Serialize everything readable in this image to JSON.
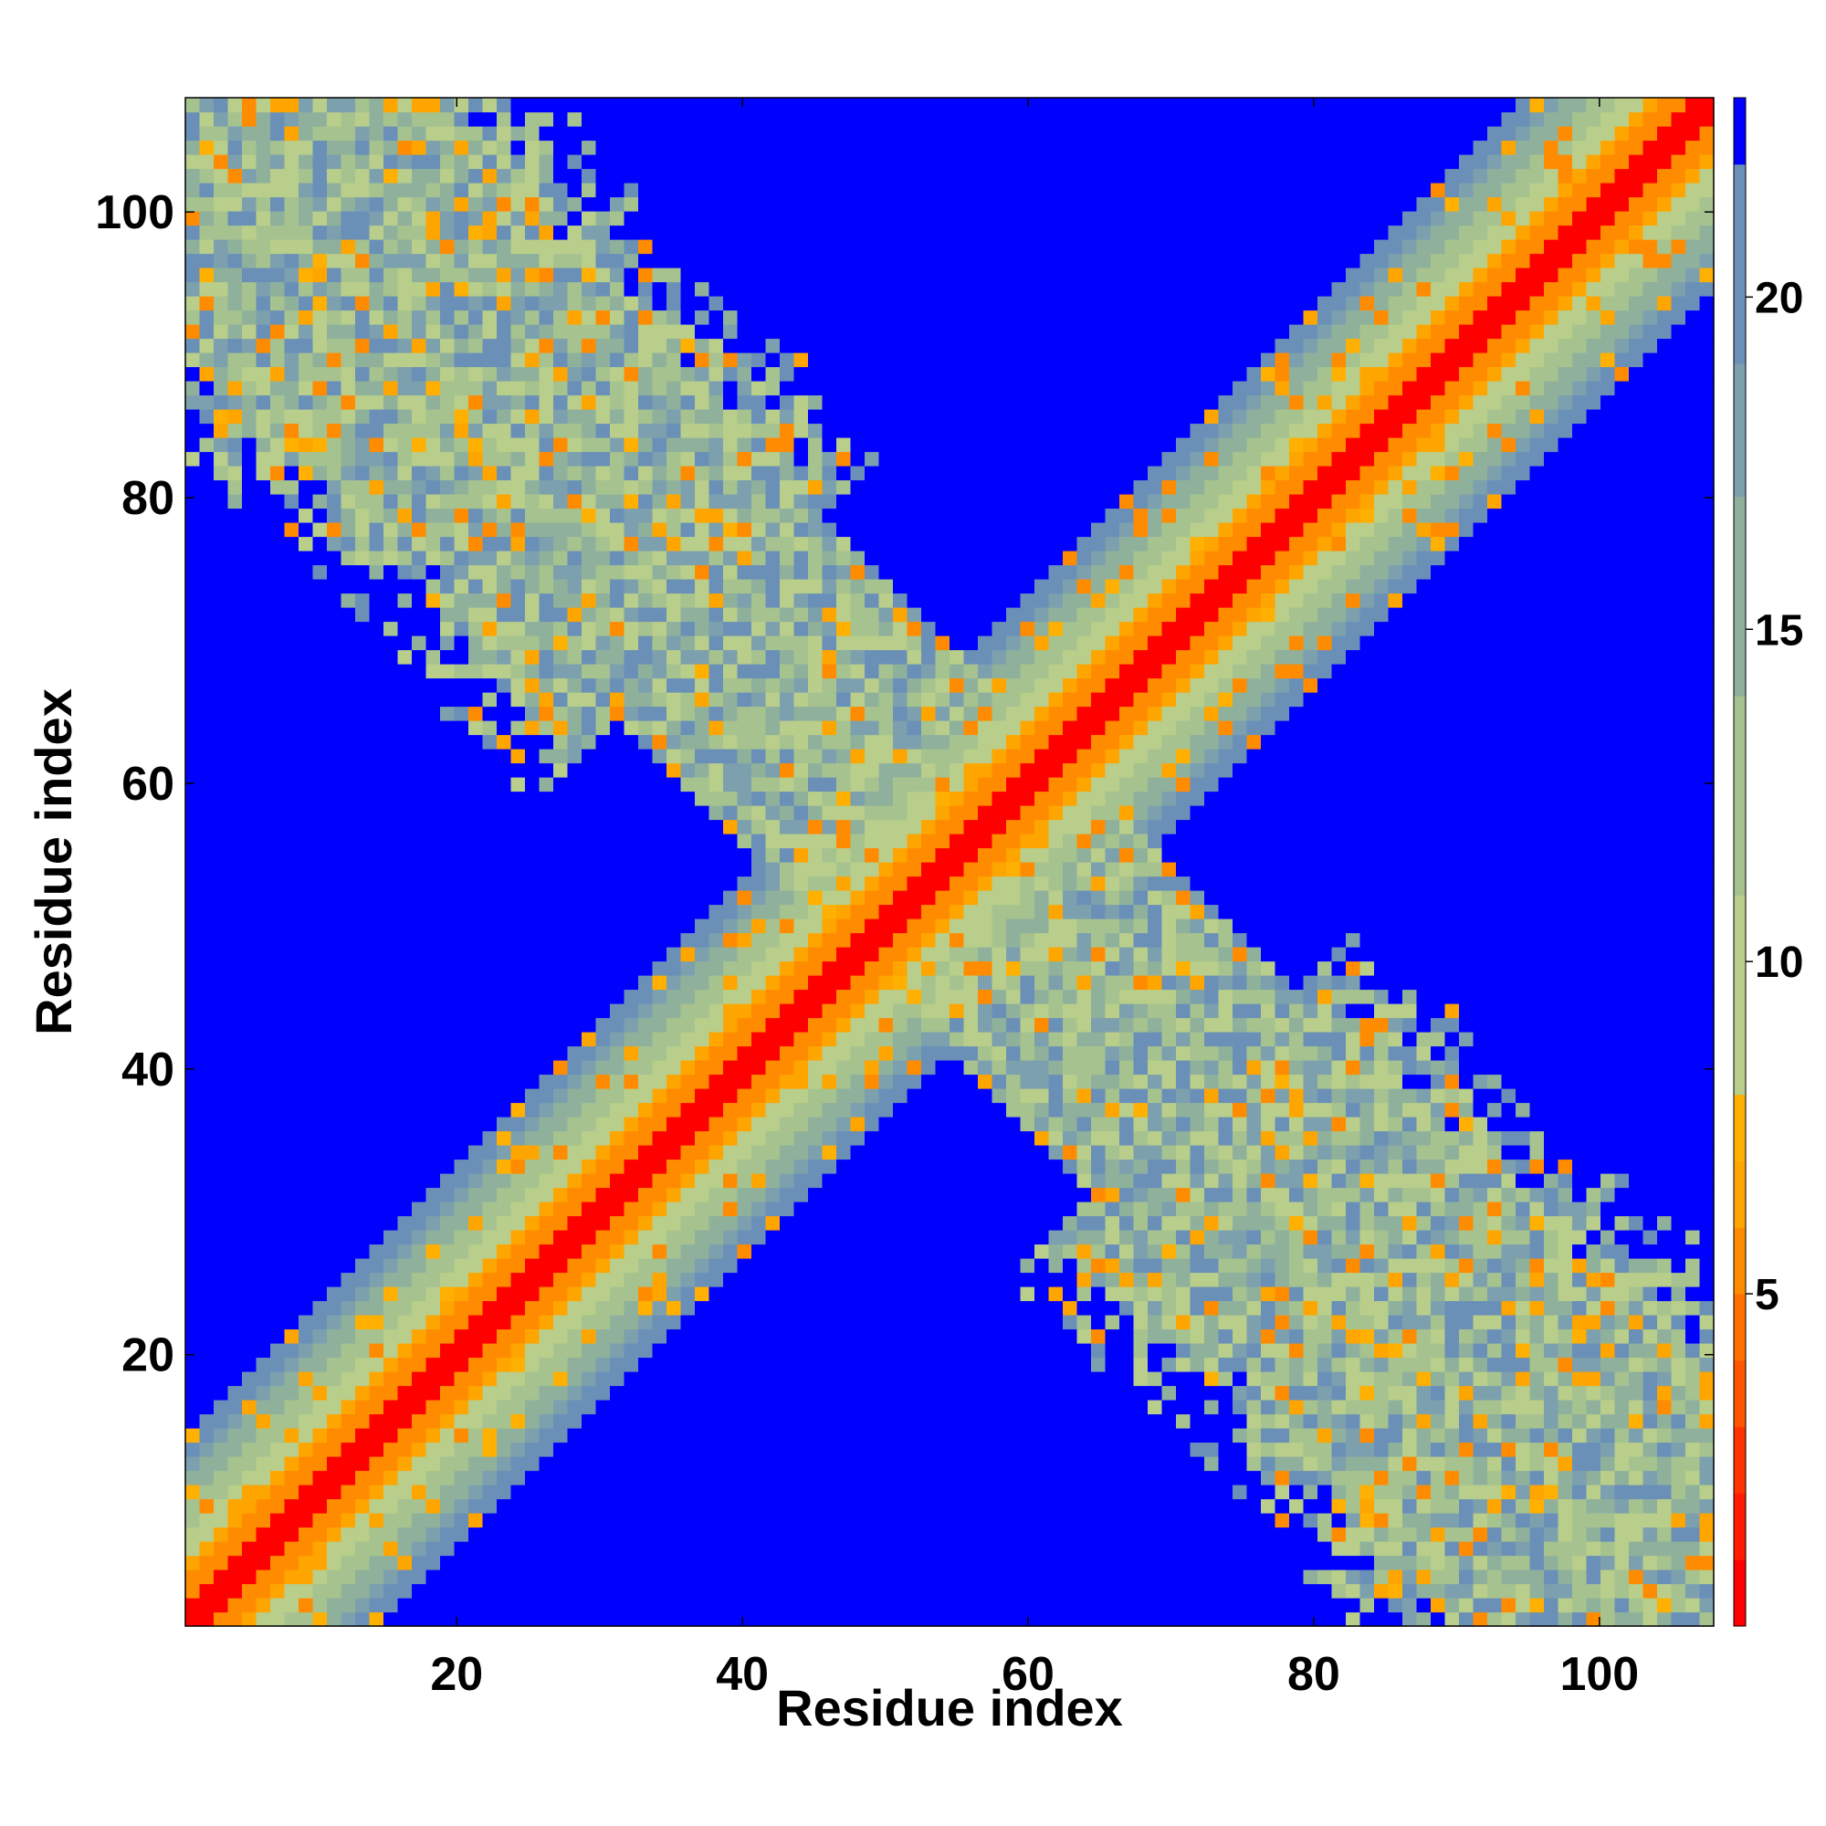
{
  "chart_data": {
    "type": "heatmap",
    "title": "",
    "xlabel": "Residue index",
    "ylabel": "Residue index",
    "xlim": [
      1,
      108
    ],
    "ylim": [
      1,
      108
    ],
    "xticks": [
      20,
      40,
      60,
      80,
      100
    ],
    "yticks": [
      20,
      40,
      60,
      80,
      100
    ],
    "n_residues": 108,
    "grid": false,
    "colorbar": {
      "ticks": [
        5,
        10,
        15,
        20
      ],
      "range": [
        0,
        23
      ],
      "bins": [
        {
          "min": 0,
          "max": 1,
          "color": "#ff0000"
        },
        {
          "min": 1,
          "max": 2,
          "color": "#ff1a00"
        },
        {
          "min": 2,
          "max": 3,
          "color": "#ff3300"
        },
        {
          "min": 3,
          "max": 4,
          "color": "#ff5500"
        },
        {
          "min": 4,
          "max": 5,
          "color": "#ff7000"
        },
        {
          "min": 5,
          "max": 6,
          "color": "#ff8c00"
        },
        {
          "min": 6,
          "max": 7,
          "color": "#ffa500"
        },
        {
          "min": 7,
          "max": 8,
          "color": "#ffb000"
        },
        {
          "min": 8,
          "max": 11,
          "color": "#b8ce8a"
        },
        {
          "min": 11,
          "max": 14,
          "color": "#a6c28f"
        },
        {
          "min": 14,
          "max": 17,
          "color": "#8fb19c"
        },
        {
          "min": 17,
          "max": 19,
          "color": "#7ca0ad"
        },
        {
          "min": 19,
          "max": 22,
          "color": "#6a90b8"
        },
        {
          "min": 22,
          "max": 23,
          "color": "#0000ff"
        }
      ]
    },
    "description": "Symmetric residue-residue distance map: strong diagonal (distance 0-8), a perpendicular anti-diagonal band of intermediate distances (8-22), and saturated blue (>22) elsewhere."
  }
}
